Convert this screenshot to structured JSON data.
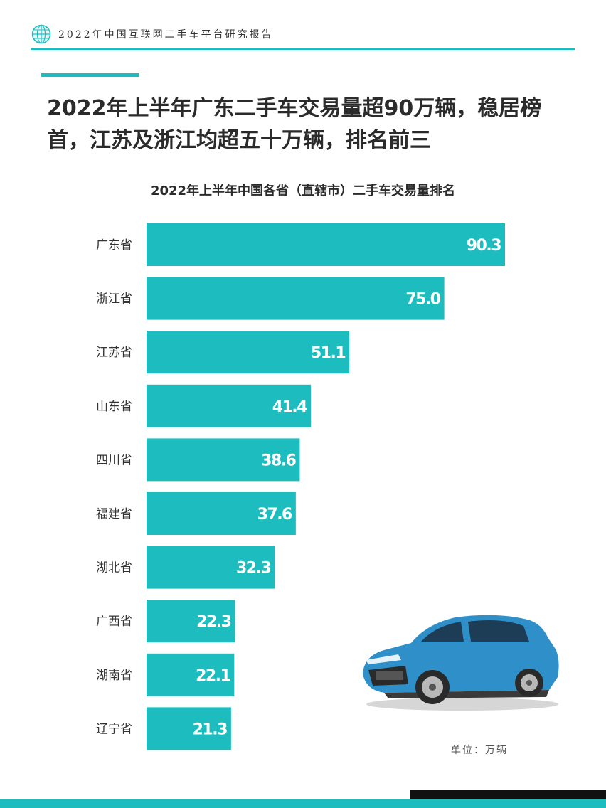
{
  "header": {
    "text": "2022年中国互联网二手车平台研究报告"
  },
  "headline": "2022年上半年广东二手车交易量超90万辆，稳居榜首，江苏及浙江均超五十万辆，排名前三",
  "unit_label": "单位：万辆",
  "colors": {
    "accent": "#1cbcbf",
    "bar": "#1cbcbf",
    "label_text": "#ffffff",
    "category_text": "#333333"
  },
  "chart_data": {
    "type": "bar",
    "orientation": "horizontal",
    "title": "2022年上半年中国各省（直辖市）二手车交易量排名",
    "categories": [
      "广东省",
      "浙江省",
      "江苏省",
      "山东省",
      "四川省",
      "福建省",
      "湖北省",
      "广西省",
      "湖南省",
      "辽宁省"
    ],
    "values": [
      90.3,
      75.0,
      51.1,
      41.4,
      38.6,
      37.6,
      32.3,
      22.3,
      22.1,
      21.3
    ],
    "data_labels": [
      "90.3",
      "75.0",
      "51.1",
      "41.4",
      "38.6",
      "37.6",
      "32.3",
      "22.3",
      "22.1",
      "21.3"
    ],
    "xlim": [
      0,
      90.3
    ],
    "grid": false,
    "legend": "none"
  }
}
